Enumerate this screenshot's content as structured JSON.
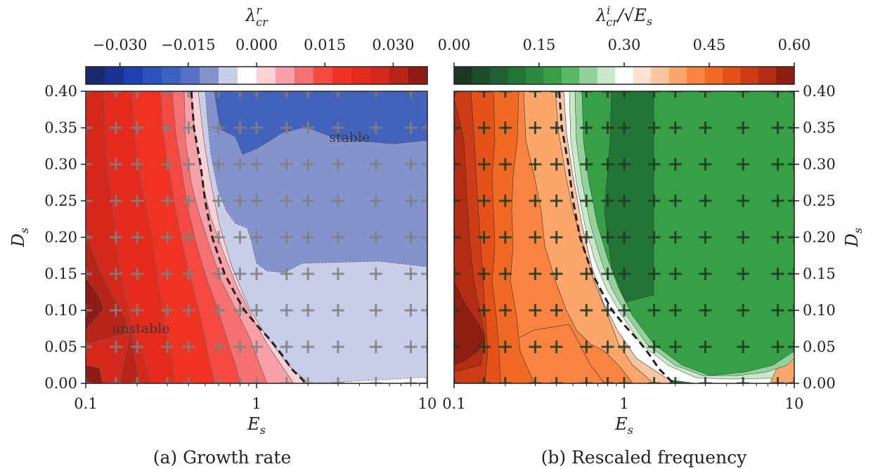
{
  "chart_data": [
    {
      "type": "heatmap",
      "caption": "(a) Growth rate",
      "colorbar": {
        "label": {
          "main": "λ",
          "sup": "r",
          "sub": "cr"
        },
        "ticks": [
          "−0.030",
          "−0.015",
          "0.000",
          "0.015",
          "0.030"
        ],
        "tick_values": [
          -0.03,
          -0.015,
          0.0,
          0.015,
          0.03
        ],
        "range": [
          -0.0375,
          0.0375
        ],
        "colors": [
          "#172a6e",
          "#1a3290",
          "#1f40b0",
          "#2a53bd",
          "#3a62c0",
          "#5570c4",
          "#8493cc",
          "#c8cde8",
          "#ffffff",
          "#fcd0d5",
          "#f8a0a8",
          "#f57070",
          "#f44840",
          "#f03222",
          "#e42a1c",
          "#d4281c",
          "#b82418",
          "#8e1c14"
        ]
      },
      "x_axis": {
        "label": "E",
        "label_sub": "s",
        "scale": "log",
        "range": [
          0.1,
          10
        ],
        "ticks": [
          "0.1",
          "1",
          "10"
        ]
      },
      "y_axis": {
        "label": "D",
        "label_sub": "s",
        "range": [
          0.0,
          0.4
        ],
        "ticks": [
          "0.00",
          "0.05",
          "0.10",
          "0.15",
          "0.20",
          "0.25",
          "0.30",
          "0.35",
          "0.40"
        ],
        "side": "left"
      },
      "annotations": [
        {
          "text": "stable",
          "E": 3.5,
          "D": 0.331
        },
        {
          "text": "unstable",
          "E": 0.21,
          "D": 0.069
        }
      ],
      "neutral_curve": [
        [
          0.415,
          0.4
        ],
        [
          0.43,
          0.35
        ],
        [
          0.47,
          0.3
        ],
        [
          0.5,
          0.25
        ],
        [
          0.55,
          0.2
        ],
        [
          0.65,
          0.15
        ],
        [
          0.76,
          0.12
        ],
        [
          0.85,
          0.1
        ],
        [
          1.0,
          0.08
        ],
        [
          1.2,
          0.06
        ],
        [
          1.4,
          0.04
        ],
        [
          1.6,
          0.02
        ],
        [
          1.95,
          0.0
        ]
      ],
      "markers": {
        "E": [
          0.1,
          0.15,
          0.2,
          0.3,
          0.4,
          0.6,
          0.8,
          1.0,
          1.5,
          2.0,
          3.0,
          5.0,
          8.0,
          10.0
        ],
        "D": [
          0.0,
          0.05,
          0.1,
          0.15,
          0.2,
          0.25,
          0.3,
          0.35,
          0.4
        ]
      }
    },
    {
      "type": "heatmap",
      "caption": "(b) Rescaled frequency",
      "colorbar": {
        "label": {
          "main": "λ",
          "sup": "i",
          "sub": "cr",
          "tail": "/√E",
          "tail_sub": "s"
        },
        "ticks": [
          "0.00",
          "0.15",
          "0.30",
          "0.45",
          "0.60"
        ],
        "tick_values": [
          0.0,
          0.15,
          0.3,
          0.45,
          0.6
        ],
        "range": [
          0.0,
          0.6
        ],
        "colors": [
          "#173a1f",
          "#1d4d29",
          "#1f5f31",
          "#237537",
          "#2b8a3e",
          "#37a046",
          "#5bb865",
          "#94d29b",
          "#c8e8c9",
          "#ffffff",
          "#fde0cf",
          "#fcc59f",
          "#fca66c",
          "#f98340",
          "#f06a25",
          "#e4521a",
          "#cc3c16",
          "#b42c14",
          "#8e1f10"
        ]
      },
      "x_axis": {
        "label": "E",
        "label_sub": "s",
        "scale": "log",
        "range": [
          0.1,
          10
        ],
        "ticks": [
          "0.1",
          "1",
          "10"
        ]
      },
      "y_axis": {
        "label": "D",
        "label_sub": "s",
        "range": [
          0.0,
          0.4
        ],
        "ticks": [
          "0.00",
          "0.05",
          "0.10",
          "0.15",
          "0.20",
          "0.25",
          "0.30",
          "0.35",
          "0.40"
        ],
        "side": "right"
      },
      "neutral_curve": [
        [
          0.415,
          0.4
        ],
        [
          0.43,
          0.35
        ],
        [
          0.47,
          0.3
        ],
        [
          0.5,
          0.25
        ],
        [
          0.55,
          0.2
        ],
        [
          0.65,
          0.15
        ],
        [
          0.76,
          0.12
        ],
        [
          0.85,
          0.1
        ],
        [
          1.0,
          0.08
        ],
        [
          1.2,
          0.06
        ],
        [
          1.4,
          0.04
        ],
        [
          1.6,
          0.02
        ],
        [
          1.95,
          0.0
        ]
      ],
      "markers": {
        "E": [
          0.1,
          0.15,
          0.2,
          0.3,
          0.4,
          0.6,
          0.8,
          1.0,
          1.5,
          2.0,
          3.0,
          5.0,
          8.0,
          10.0
        ],
        "D": [
          0.0,
          0.05,
          0.1,
          0.15,
          0.2,
          0.25,
          0.3,
          0.35,
          0.4
        ]
      }
    }
  ]
}
